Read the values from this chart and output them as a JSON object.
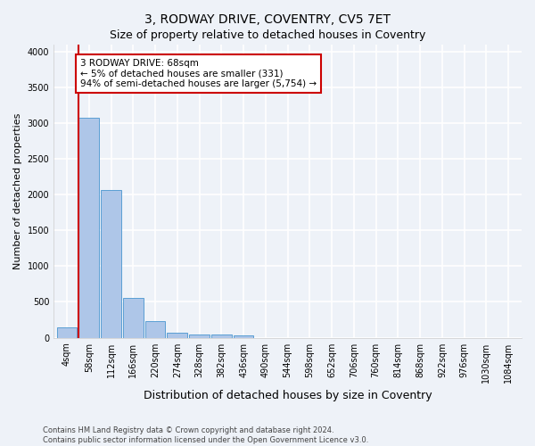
{
  "title": "3, RODWAY DRIVE, COVENTRY, CV5 7ET",
  "subtitle": "Size of property relative to detached houses in Coventry",
  "xlabel": "Distribution of detached houses by size in Coventry",
  "ylabel": "Number of detached properties",
  "bin_labels": [
    "4sqm",
    "58sqm",
    "112sqm",
    "166sqm",
    "220sqm",
    "274sqm",
    "328sqm",
    "382sqm",
    "436sqm",
    "490sqm",
    "544sqm",
    "598sqm",
    "652sqm",
    "706sqm",
    "760sqm",
    "814sqm",
    "868sqm",
    "922sqm",
    "976sqm",
    "1030sqm",
    "1084sqm"
  ],
  "bar_heights": [
    150,
    3080,
    2070,
    560,
    230,
    70,
    45,
    40,
    35,
    0,
    0,
    0,
    0,
    0,
    0,
    0,
    0,
    0,
    0,
    0,
    0
  ],
  "bar_color": "#aec6e8",
  "bar_edge_color": "#5a9fd4",
  "annotation_line1": "3 RODWAY DRIVE: 68sqm",
  "annotation_line2": "← 5% of detached houses are smaller (331)",
  "annotation_line3": "94% of semi-detached houses are larger (5,754) →",
  "annotation_box_color": "#ffffff",
  "annotation_box_edge_color": "#cc0000",
  "vertical_line_color": "#cc0000",
  "ylim": [
    0,
    4100
  ],
  "yticks": [
    0,
    500,
    1000,
    1500,
    2000,
    2500,
    3000,
    3500,
    4000
  ],
  "footer_line1": "Contains HM Land Registry data © Crown copyright and database right 2024.",
  "footer_line2": "Contains public sector information licensed under the Open Government Licence v3.0.",
  "background_color": "#eef2f8",
  "grid_color": "#ffffff",
  "title_fontsize": 10,
  "axis_label_fontsize": 8,
  "tick_fontsize": 7,
  "annotation_fontsize": 7.5,
  "footer_fontsize": 6
}
